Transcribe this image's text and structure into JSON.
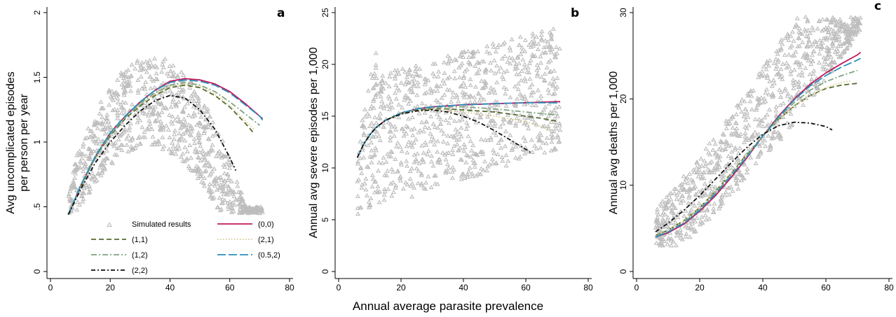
{
  "xlabel": "Annual average parasite prevalence",
  "legend": [
    {
      "label": "Simulated results",
      "style": "marker",
      "color": "#bdbdbd"
    },
    {
      "label": "(0,0)",
      "color": "#c2185b",
      "dash": ""
    },
    {
      "label": "(1,1)",
      "color": "#556b2f",
      "dash": "7,4"
    },
    {
      "label": "(2,1)",
      "color": "#d4c98a",
      "dash": "1.5,2.5"
    },
    {
      "label": "(1,2)",
      "color": "#7fa37f",
      "dash": "8,3,2,3"
    },
    {
      "label": "(0.5,2)",
      "color": "#2a8fbd",
      "dash": "12,4"
    },
    {
      "label": "(2,2)",
      "color": "#111111",
      "dash": "6,3,2,3"
    }
  ],
  "chart_data": [
    {
      "type": "scatter",
      "panel": "a",
      "ylabel": [
        "Avg uncomplicated episodes",
        "per person per year"
      ],
      "xlim": [
        0,
        80
      ],
      "ylim": [
        0,
        2
      ],
      "xticks": [
        "0",
        "20",
        "40",
        "60",
        "80"
      ],
      "yticks": [
        {
          "v": 0,
          "t": "0"
        },
        {
          "v": 0.5,
          "t": ".5"
        },
        {
          "v": 1,
          "t": "1"
        },
        {
          "v": 1.5,
          "t": "1.5"
        },
        {
          "v": 2,
          "t": "2"
        }
      ],
      "curves": [
        {
          "name": "(0,0)",
          "x": [
            6,
            10,
            15,
            20,
            25,
            30,
            35,
            40,
            45,
            50,
            55,
            60,
            65,
            70,
            71
          ],
          "y": [
            0.44,
            0.66,
            0.89,
            1.07,
            1.2,
            1.31,
            1.4,
            1.47,
            1.49,
            1.48,
            1.45,
            1.39,
            1.3,
            1.2,
            1.18
          ]
        },
        {
          "name": "(1,1)",
          "x": [
            6,
            10,
            15,
            20,
            25,
            30,
            35,
            40,
            45,
            50,
            55,
            60,
            65,
            68
          ],
          "y": [
            0.44,
            0.65,
            0.88,
            1.05,
            1.18,
            1.28,
            1.36,
            1.42,
            1.44,
            1.42,
            1.36,
            1.27,
            1.15,
            1.07
          ]
        },
        {
          "name": "(2,1)",
          "x": [
            6,
            10,
            15,
            20,
            25,
            30,
            35,
            40,
            45,
            50,
            55,
            60,
            65,
            68
          ],
          "y": [
            0.44,
            0.66,
            0.89,
            1.06,
            1.19,
            1.29,
            1.37,
            1.43,
            1.45,
            1.43,
            1.37,
            1.28,
            1.17,
            1.1
          ]
        },
        {
          "name": "(1,2)",
          "x": [
            6,
            10,
            15,
            20,
            25,
            30,
            35,
            40,
            45,
            50,
            55,
            60,
            65,
            70
          ],
          "y": [
            0.44,
            0.65,
            0.88,
            1.06,
            1.19,
            1.3,
            1.38,
            1.44,
            1.46,
            1.44,
            1.39,
            1.31,
            1.22,
            1.13
          ]
        },
        {
          "name": "(0.5,2)",
          "x": [
            6,
            10,
            15,
            20,
            25,
            30,
            35,
            40,
            45,
            50,
            55,
            60,
            65,
            70,
            71
          ],
          "y": [
            0.44,
            0.66,
            0.89,
            1.07,
            1.2,
            1.31,
            1.4,
            1.46,
            1.48,
            1.47,
            1.44,
            1.38,
            1.29,
            1.2,
            1.17
          ]
        },
        {
          "name": "(2,2)",
          "x": [
            6,
            10,
            15,
            20,
            25,
            30,
            35,
            40,
            45,
            50,
            55,
            60,
            62
          ],
          "y": [
            0.44,
            0.63,
            0.84,
            1.0,
            1.13,
            1.24,
            1.32,
            1.36,
            1.34,
            1.25,
            1.1,
            0.88,
            0.78
          ]
        }
      ]
    },
    {
      "type": "scatter",
      "panel": "b",
      "ylabel": [
        "Annual avg severe episodes per 1,000"
      ],
      "xlim": [
        0,
        80
      ],
      "ylim": [
        0,
        25
      ],
      "xticks": [
        "0",
        "20",
        "40",
        "60",
        "80"
      ],
      "yticks": [
        {
          "v": 0,
          "t": "0"
        },
        {
          "v": 5,
          "t": "5"
        },
        {
          "v": 10,
          "t": "10"
        },
        {
          "v": 15,
          "t": "15"
        },
        {
          "v": 20,
          "t": "20"
        },
        {
          "v": 25,
          "t": "25"
        }
      ],
      "curves": [
        {
          "name": "(0,0)",
          "x": [
            6,
            8,
            10,
            12,
            15,
            20,
            25,
            30,
            35,
            40,
            50,
            60,
            70,
            71
          ],
          "y": [
            11.0,
            12.3,
            13.2,
            13.9,
            14.6,
            15.3,
            15.7,
            15.9,
            16.0,
            16.1,
            16.2,
            16.3,
            16.4,
            16.4
          ]
        },
        {
          "name": "(1,1)",
          "x": [
            6,
            8,
            10,
            12,
            15,
            20,
            25,
            30,
            35,
            40,
            50,
            60,
            65,
            70
          ],
          "y": [
            11.0,
            12.3,
            13.2,
            13.9,
            14.6,
            15.3,
            15.6,
            15.7,
            15.7,
            15.6,
            15.4,
            15.0,
            14.8,
            14.5
          ]
        },
        {
          "name": "(2,1)",
          "x": [
            6,
            8,
            10,
            12,
            15,
            20,
            25,
            30,
            35,
            40,
            50,
            60,
            65,
            68
          ],
          "y": [
            11.0,
            12.3,
            13.2,
            13.9,
            14.6,
            15.2,
            15.5,
            15.6,
            15.5,
            15.4,
            15.0,
            14.5,
            14.0,
            13.6
          ]
        },
        {
          "name": "(1,2)",
          "x": [
            6,
            8,
            10,
            12,
            15,
            20,
            25,
            30,
            35,
            40,
            50,
            60,
            70
          ],
          "y": [
            11.0,
            12.3,
            13.2,
            13.9,
            14.6,
            15.3,
            15.7,
            15.8,
            15.9,
            15.9,
            15.7,
            15.4,
            15.1
          ]
        },
        {
          "name": "(0.5,2)",
          "x": [
            6,
            8,
            10,
            12,
            15,
            20,
            25,
            30,
            35,
            40,
            50,
            60,
            70,
            71
          ],
          "y": [
            11.0,
            12.3,
            13.2,
            13.9,
            14.6,
            15.3,
            15.7,
            15.9,
            16.0,
            16.1,
            16.2,
            16.3,
            16.3,
            16.3
          ]
        },
        {
          "name": "(2,2)",
          "x": [
            6,
            8,
            10,
            12,
            15,
            20,
            25,
            30,
            35,
            40,
            45,
            50,
            55,
            60,
            62
          ],
          "y": [
            11.0,
            12.3,
            13.2,
            13.9,
            14.6,
            15.2,
            15.5,
            15.6,
            15.4,
            15.0,
            14.4,
            13.6,
            12.7,
            11.8,
            11.4
          ]
        }
      ]
    },
    {
      "type": "scatter",
      "panel": "c",
      "ylabel": [
        "Annual avg deaths per 1,000"
      ],
      "xlim": [
        0,
        80
      ],
      "ylim": [
        0,
        30
      ],
      "xticks": [
        "0",
        "20",
        "40",
        "60",
        "80"
      ],
      "yticks": [
        {
          "v": 0,
          "t": "0"
        },
        {
          "v": 10,
          "t": "10"
        },
        {
          "v": 20,
          "t": "20"
        },
        {
          "v": 30,
          "t": "30"
        }
      ],
      "curves": [
        {
          "name": "(0,0)",
          "x": [
            6,
            10,
            15,
            20,
            25,
            30,
            35,
            40,
            45,
            50,
            55,
            60,
            65,
            70,
            71
          ],
          "y": [
            4.0,
            4.5,
            5.5,
            7.0,
            8.8,
            10.9,
            13.2,
            15.7,
            18.0,
            20.0,
            21.7,
            23.0,
            24.1,
            25.1,
            25.4
          ]
        },
        {
          "name": "(1,1)",
          "x": [
            6,
            10,
            15,
            20,
            25,
            30,
            35,
            40,
            45,
            50,
            55,
            60,
            65,
            70
          ],
          "y": [
            4.2,
            4.8,
            5.9,
            7.4,
            9.3,
            11.4,
            13.6,
            15.7,
            17.6,
            19.2,
            20.4,
            21.2,
            21.6,
            21.8
          ]
        },
        {
          "name": "(2,1)",
          "x": [
            6,
            10,
            15,
            20,
            25,
            30,
            35,
            40,
            45,
            50,
            55,
            60,
            65,
            68
          ],
          "y": [
            4.2,
            4.8,
            5.9,
            7.4,
            9.3,
            11.4,
            13.6,
            15.7,
            17.6,
            19.2,
            20.4,
            21.3,
            21.9,
            22.1
          ]
        },
        {
          "name": "(1,2)",
          "x": [
            6,
            10,
            15,
            20,
            25,
            30,
            35,
            40,
            45,
            50,
            55,
            60,
            65,
            70
          ],
          "y": [
            4.1,
            4.6,
            5.7,
            7.2,
            9.1,
            11.2,
            13.4,
            15.7,
            17.8,
            19.6,
            21.0,
            22.0,
            22.7,
            23.3
          ]
        },
        {
          "name": "(0.5,2)",
          "x": [
            6,
            10,
            15,
            20,
            25,
            30,
            35,
            40,
            45,
            50,
            55,
            60,
            65,
            70,
            71
          ],
          "y": [
            4.0,
            4.6,
            5.6,
            7.1,
            9.0,
            11.1,
            13.3,
            15.7,
            17.9,
            19.9,
            21.5,
            22.7,
            23.7,
            24.5,
            24.7
          ]
        },
        {
          "name": "(2,2)",
          "x": [
            6,
            10,
            15,
            20,
            25,
            30,
            35,
            40,
            45,
            50,
            55,
            60,
            62
          ],
          "y": [
            4.6,
            5.6,
            7.1,
            8.8,
            10.7,
            12.6,
            14.4,
            15.9,
            16.9,
            17.3,
            17.2,
            16.8,
            16.4
          ]
        }
      ]
    }
  ]
}
